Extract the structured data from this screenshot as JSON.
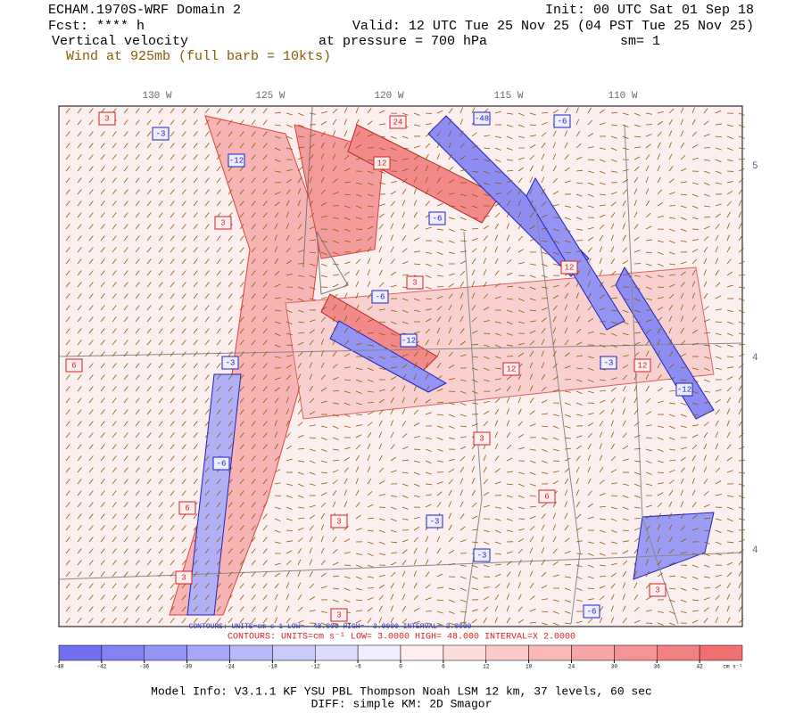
{
  "header": {
    "title": "ECHAM.1970S-WRF Domain 2",
    "init": "Init: 00 UTC Sat 01 Sep 18",
    "forecast": "Fcst: **** h",
    "valid": "Valid: 12 UTC Tue 25 Nov 25 (04 PST Tue 25 Nov 25)",
    "field": "Vertical velocity",
    "level": "at pressure =  700 hPa",
    "smoothing": "sm= 1",
    "wind": "Wind at 925mb (full barb = 10kts)"
  },
  "map": {
    "lon_labels": [
      "130 W",
      "125 W",
      "120 W",
      "115 W",
      "110 W"
    ],
    "lat_labels": [
      "5",
      "4",
      "4"
    ],
    "contour_labels": [
      "3",
      "-3",
      "24",
      "-48",
      "-6",
      "12",
      "-12",
      "3",
      "-6",
      "12",
      "-3",
      "6",
      "-6",
      "3",
      "-12",
      "12",
      "-3",
      "3",
      "-6",
      "6",
      "3",
      "-3",
      "12",
      "-12",
      "3",
      "-3",
      "3",
      "6",
      "-6",
      "3"
    ]
  },
  "contour_info": {
    "negative": "CONTOURS:  UNITS=cm s-1  LOW=  -48.000   HIGH=  -3.0000   INTERVAL=  3.0000",
    "positive": "CONTOURS:  UNITS=cm s⁻¹  LOW=  3.0000   HIGH=  48.000   INTERVAL=X  2.0000"
  },
  "colorbar": {
    "range": [
      -48,
      48
    ],
    "ticks": [
      -48,
      -42,
      -36,
      -30,
      -24,
      -18,
      -12,
      -6,
      0,
      6,
      12,
      18,
      24,
      30,
      36,
      42
    ],
    "units": "cm s⁻¹",
    "colors": [
      "#7070f0",
      "#8282f2",
      "#9494f4",
      "#a6a6f6",
      "#b8b8f8",
      "#cacafa",
      "#dcdcfc",
      "#eeeefe",
      "#feeeee",
      "#fcdcdc",
      "#facaca",
      "#f8b8b8",
      "#f6a6a6",
      "#f49494",
      "#f28282",
      "#f07070"
    ]
  },
  "footer": {
    "model": "Model Info: V3.1.1    KF     YSU PBL  Thompson     Noah LSM  12 km,    37 levels,    60 sec",
    "diff": "DIFF: simple KM: 2D Smagor"
  }
}
